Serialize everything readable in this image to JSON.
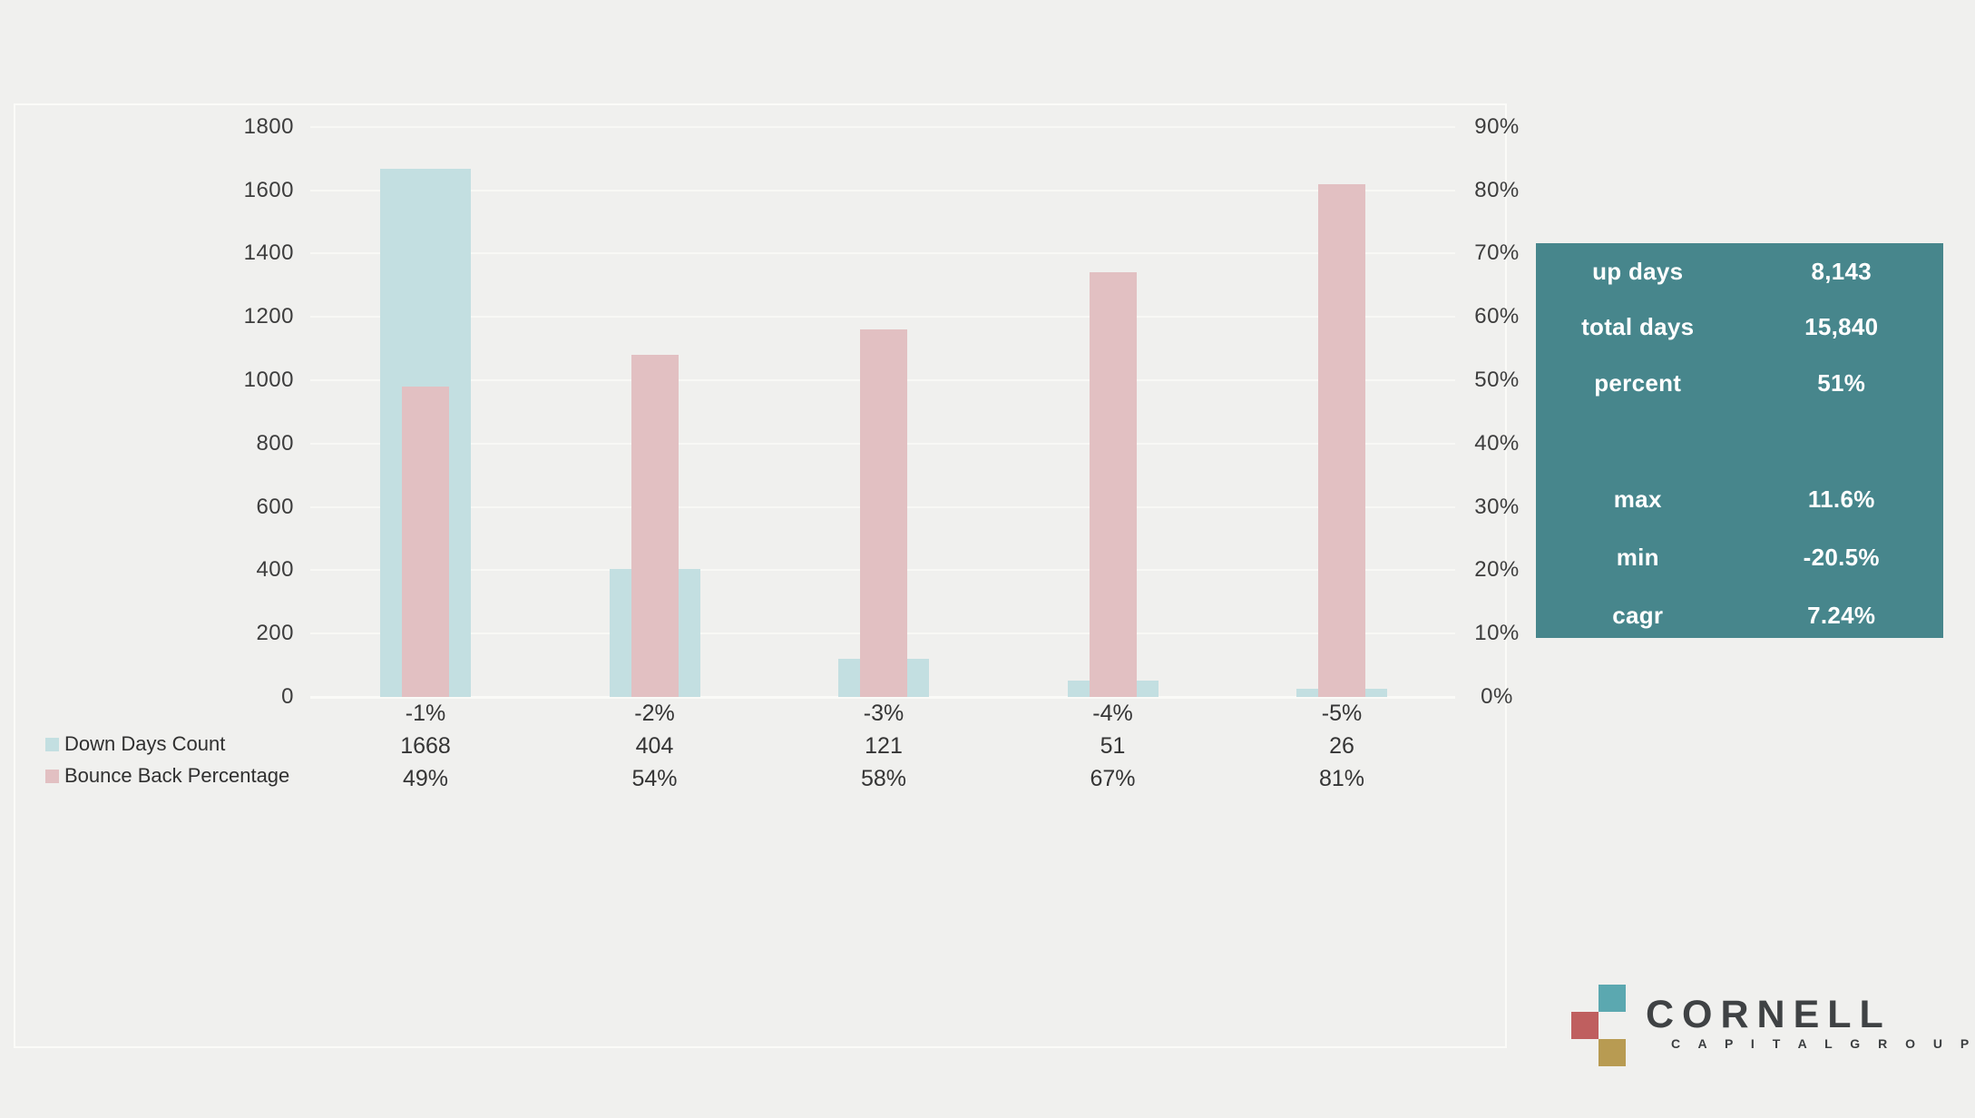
{
  "page": {
    "background_color": "#f0f0ee",
    "panel_border_color": "#fbfbf8"
  },
  "chart_data": {
    "type": "bar",
    "title": "",
    "categories": [
      "-1%",
      "-2%",
      "-3%",
      "-4%",
      "-5%"
    ],
    "series": [
      {
        "name": "Down Days Count",
        "axis": "left",
        "color": "#c3dfe1",
        "values": [
          1668,
          404,
          121,
          51,
          26
        ],
        "display": [
          "1668",
          "404",
          "121",
          "51",
          "26"
        ]
      },
      {
        "name": "Bounce Back Percentage",
        "axis": "right",
        "color": "#e2c0c2",
        "values": [
          49,
          54,
          58,
          67,
          81
        ],
        "display": [
          "49%",
          "54%",
          "58%",
          "67%",
          "81%"
        ]
      }
    ],
    "left_axis": {
      "min": 0,
      "max": 1800,
      "step": 200,
      "tick_labels": [
        "0",
        "200",
        "400",
        "600",
        "800",
        "1000",
        "1200",
        "1400",
        "1600",
        "1800"
      ]
    },
    "right_axis": {
      "min": 0,
      "max": 90,
      "step": 10,
      "tick_labels": [
        "0%",
        "10%",
        "20%",
        "30%",
        "40%",
        "50%",
        "60%",
        "70%",
        "80%",
        "90%"
      ]
    },
    "grid": true,
    "legend_position": "bottom-left"
  },
  "stats_box": {
    "background_color": "#47868c",
    "rows_top": [
      {
        "label": "up days",
        "value": "8,143"
      },
      {
        "label": "total days",
        "value": "15,840"
      },
      {
        "label": "percent",
        "value": "51%"
      }
    ],
    "rows_bottom": [
      {
        "label": "max",
        "value": "11.6%"
      },
      {
        "label": "min",
        "value": "-20.5%"
      },
      {
        "label": "cagr",
        "value": "7.24%"
      }
    ]
  },
  "logo": {
    "title": "CORNELL",
    "subtitle": "C A P I T A L   G R O U P",
    "square_colors": {
      "teal": "#5ba8b0",
      "red": "#bf5f5f",
      "gold": "#b89b52"
    }
  }
}
